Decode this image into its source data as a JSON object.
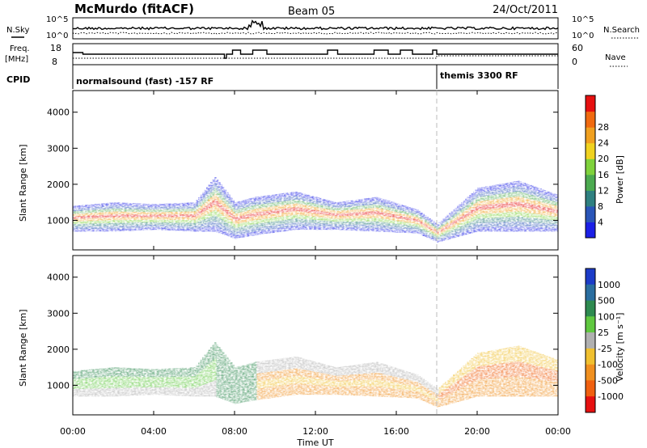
{
  "header": {
    "station": "McMurdo (fitACF)",
    "beam": "Beam 05",
    "date": "24/Oct/2011"
  },
  "noise_panel": {
    "left_label": "N.Sky",
    "right_label": "N.Search",
    "left_ticks": [
      "10^5",
      "10^0"
    ],
    "right_ticks": [
      "10^5",
      "10^0"
    ]
  },
  "freq_panel": {
    "left_label_1": "Freq.",
    "left_label_2": "[MHz]",
    "right_label": "Nave",
    "left_ticks": [
      "18",
      "8"
    ],
    "right_ticks": [
      "60",
      "0"
    ]
  },
  "cpid_panel": {
    "label": "CPID",
    "modes": [
      {
        "name": "normalsound (fast) -157 RF",
        "start_hour": 0
      },
      {
        "name": "themis 3300 RF",
        "start_hour": 18
      }
    ]
  },
  "chart_data": [
    {
      "type": "heatmap",
      "parameter": "Power",
      "ylabel": "Slant Range [km]",
      "yticks": [
        1000,
        2000,
        3000,
        4000
      ],
      "ylim": [
        180,
        4600
      ],
      "colorbar_label": "Power [dB]",
      "colorbar_ticks": [
        4,
        8,
        12,
        16,
        20,
        24,
        28
      ],
      "colorbar_colors": [
        "#1c20e6",
        "#2a55b8",
        "#2f8080",
        "#4caa50",
        "#7fd23c",
        "#f0d220",
        "#f0a020",
        "#f06a10",
        "#e61010"
      ],
      "echo_band": [
        {
          "hour": 0,
          "low": 700,
          "high": 1400
        },
        {
          "hour": 2,
          "low": 700,
          "high": 1500
        },
        {
          "hour": 4,
          "low": 750,
          "high": 1450
        },
        {
          "hour": 6,
          "low": 700,
          "high": 1500
        },
        {
          "hour": 7,
          "low": 700,
          "high": 2200
        },
        {
          "hour": 8,
          "low": 500,
          "high": 1500
        },
        {
          "hour": 9,
          "low": 600,
          "high": 1650
        },
        {
          "hour": 11,
          "low": 750,
          "high": 1800
        },
        {
          "hour": 13,
          "low": 750,
          "high": 1500
        },
        {
          "hour": 15,
          "low": 700,
          "high": 1650
        },
        {
          "hour": 17,
          "low": 650,
          "high": 1300
        },
        {
          "hour": 18,
          "low": 400,
          "high": 900
        },
        {
          "hour": 20,
          "low": 700,
          "high": 1900
        },
        {
          "hour": 22,
          "low": 700,
          "high": 2100
        },
        {
          "hour": 24,
          "low": 700,
          "high": 1700
        }
      ]
    },
    {
      "type": "heatmap",
      "parameter": "Velocity",
      "ylabel": "Slant Range [km]",
      "yticks": [
        1000,
        2000,
        3000,
        4000
      ],
      "ylim": [
        180,
        4600
      ],
      "colorbar_label": "Velocity [m s⁻¹]",
      "colorbar_ticks": [
        1000,
        500,
        100,
        25,
        -25,
        -100,
        -500,
        -1000
      ],
      "colorbar_colors": [
        "#1c3cc8",
        "#2a6ea0",
        "#2e8a50",
        "#60c840",
        "#b0b0b0",
        "#f0c030",
        "#f09020",
        "#f06010",
        "#e61010"
      ],
      "xlabel": "Time UT",
      "xticks": [
        "00:00",
        "04:00",
        "08:00",
        "12:00",
        "16:00",
        "20:00",
        "00:00"
      ]
    }
  ]
}
